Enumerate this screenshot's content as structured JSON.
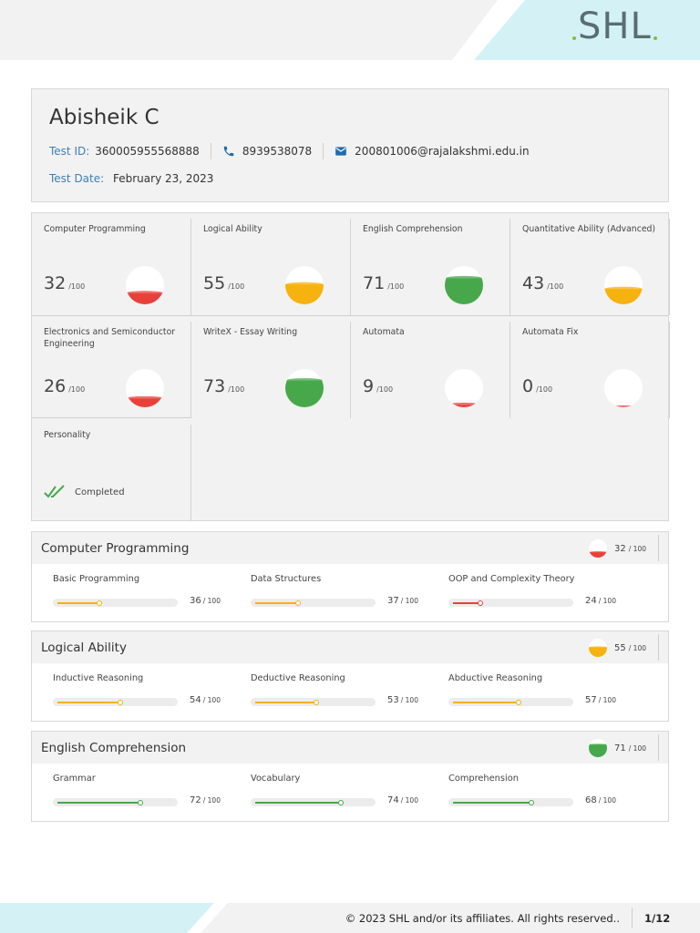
{
  "brand": {
    "logo_text": "SHL",
    "accent_green": "#7ac142",
    "accent_cyan": "#d4f2f5",
    "label_blue": "#3f7fb4"
  },
  "candidate": {
    "name": "Abisheik C",
    "test_id_label": "Test ID:",
    "test_id": "360005955568888",
    "phone": "8939538078",
    "email": "200801006@rajalakshmi.edu.in",
    "test_date_label": "Test Date:",
    "test_date": "February 23, 2023"
  },
  "scores": [
    {
      "title": "Computer Programming",
      "score": 32,
      "max": "/100",
      "color": "#e8413a"
    },
    {
      "title": "Logical Ability",
      "score": 55,
      "max": "/100",
      "color": "#f6b20e"
    },
    {
      "title": "English Comprehension",
      "score": 71,
      "max": "/100",
      "color": "#46a84a"
    },
    {
      "title": "Quantitative Ability (Advanced)",
      "score": 43,
      "max": "/100",
      "color": "#f6b20e"
    },
    {
      "title": "Electronics and Semiconductor Engineering",
      "score": 26,
      "max": "/100",
      "color": "#e8413a"
    },
    {
      "title": "WriteX - Essay Writing",
      "score": 73,
      "max": "/100",
      "color": "#46a84a"
    },
    {
      "title": "Automata",
      "score": 9,
      "max": "/100",
      "color": "#e8413a"
    },
    {
      "title": "Automata Fix",
      "score": 0,
      "max": "/100",
      "color": "#e8413a"
    }
  ],
  "personality": {
    "title": "Personality",
    "status": "Completed",
    "check_color": "#46a84a"
  },
  "sections": [
    {
      "title": "Computer Programming",
      "score": 32,
      "max": "/ 100",
      "color": "#e8413a",
      "subs": [
        {
          "name": "Basic Programming",
          "score": 36,
          "max": "/ 100",
          "color": "#f6b20e"
        },
        {
          "name": "Data Structures",
          "score": 37,
          "max": "/ 100",
          "color": "#f6b20e"
        },
        {
          "name": "OOP and Complexity Theory",
          "score": 24,
          "max": "/ 100",
          "color": "#e8413a"
        }
      ]
    },
    {
      "title": "Logical Ability",
      "score": 55,
      "max": "/ 100",
      "color": "#f6b20e",
      "subs": [
        {
          "name": "Inductive Reasoning",
          "score": 54,
          "max": "/ 100",
          "color": "#f6b20e"
        },
        {
          "name": "Deductive Reasoning",
          "score": 53,
          "max": "/ 100",
          "color": "#f6b20e"
        },
        {
          "name": "Abductive Reasoning",
          "score": 57,
          "max": "/ 100",
          "color": "#f6b20e"
        }
      ]
    },
    {
      "title": "English Comprehension",
      "score": 71,
      "max": "/ 100",
      "color": "#46a84a",
      "subs": [
        {
          "name": "Grammar",
          "score": 72,
          "max": "/ 100",
          "color": "#46a84a"
        },
        {
          "name": "Vocabulary",
          "score": 74,
          "max": "/ 100",
          "color": "#46a84a"
        },
        {
          "name": "Comprehension",
          "score": 68,
          "max": "/ 100",
          "color": "#46a84a"
        }
      ]
    }
  ],
  "footer": {
    "copyright": "© 2023 SHL and/or its affiliates. All rights reserved..",
    "page": "1/12"
  }
}
